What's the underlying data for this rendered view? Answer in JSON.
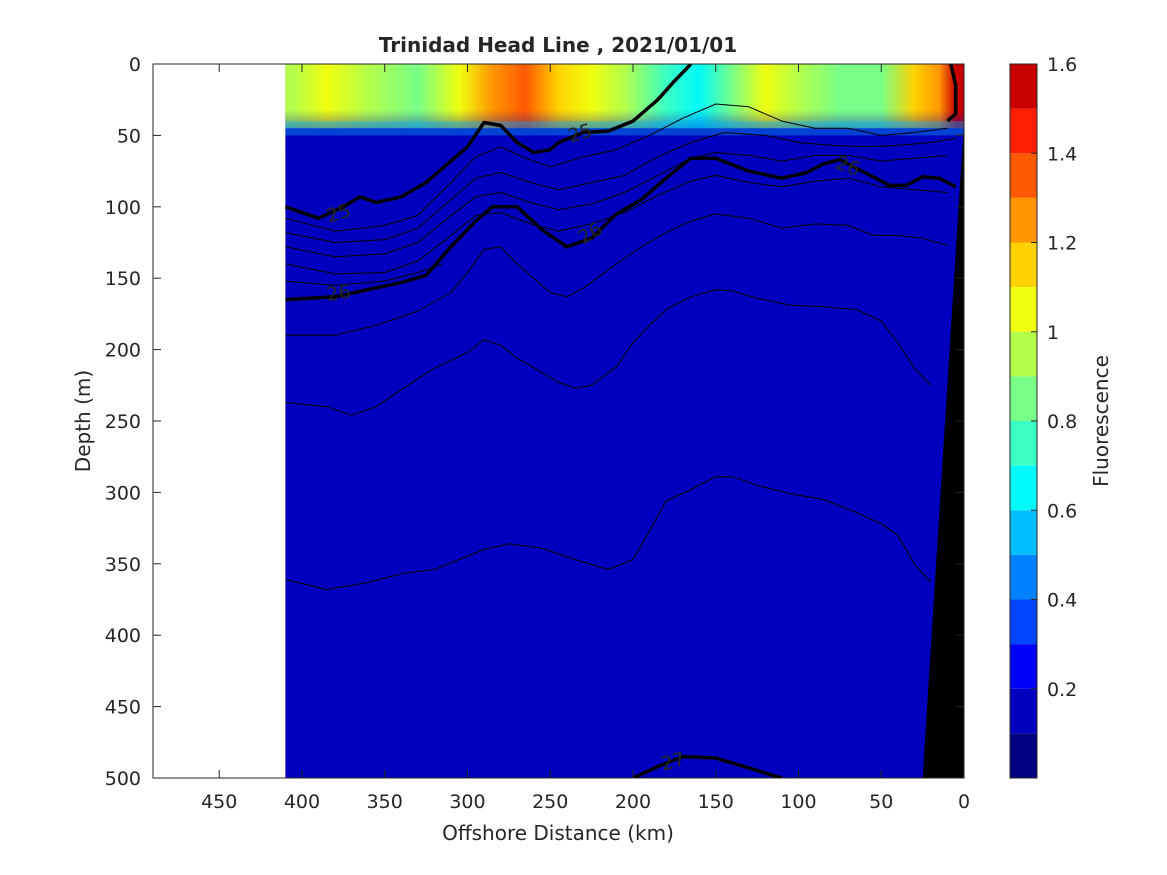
{
  "chart_data": {
    "type": "heatmap",
    "title": "Trinidad Head Line , 2021/01/01",
    "xlabel": "Offshore Distance (km)",
    "ylabel": "Depth (m)",
    "colorbar_label": "Fluorescence",
    "xlim": [
      490,
      0
    ],
    "ylim": [
      500,
      0
    ],
    "x_ticks": [
      450,
      400,
      350,
      300,
      250,
      200,
      150,
      100,
      50,
      0
    ],
    "x_tick_labels": [
      "450",
      "400",
      "350",
      "300",
      "250",
      "200",
      "150",
      "100",
      "50",
      "0"
    ],
    "y_ticks": [
      0,
      50,
      100,
      150,
      200,
      250,
      300,
      350,
      400,
      450,
      500
    ],
    "y_tick_labels": [
      "0",
      "50",
      "100",
      "150",
      "200",
      "250",
      "300",
      "350",
      "400",
      "450",
      "500"
    ],
    "data_x_range": [
      410,
      0
    ],
    "colorbar": {
      "range": [
        0,
        1.6
      ],
      "levels": [
        0,
        0.1,
        0.2,
        0.3,
        0.4,
        0.5,
        0.6,
        0.7,
        0.8,
        0.9,
        1.0,
        1.1,
        1.2,
        1.3,
        1.4,
        1.5,
        1.6
      ],
      "ticks": [
        0.2,
        0.4,
        0.6,
        0.8,
        1,
        1.2,
        1.4,
        1.6
      ],
      "tick_labels": [
        "0.2",
        "0.4",
        "0.6",
        "0.8",
        "1",
        "1.2",
        "1.4",
        "1.6"
      ],
      "colors": [
        "#000083",
        "#0000be",
        "#0000fa",
        "#0046ff",
        "#0082ff",
        "#00beff",
        "#00fafa",
        "#3cffc3",
        "#78ff87",
        "#b4ff4b",
        "#f0ff0f",
        "#ffd200",
        "#ff9600",
        "#ff5a00",
        "#ff1e00",
        "#c80000"
      ]
    },
    "surface_fluorescence_profile": [
      {
        "x": 405,
        "value": 0.95
      },
      {
        "x": 385,
        "value": 1.0
      },
      {
        "x": 360,
        "value": 0.9
      },
      {
        "x": 330,
        "value": 0.85
      },
      {
        "x": 305,
        "value": 1.05
      },
      {
        "x": 285,
        "value": 1.25
      },
      {
        "x": 265,
        "value": 1.3
      },
      {
        "x": 245,
        "value": 1.2
      },
      {
        "x": 225,
        "value": 1.0
      },
      {
        "x": 205,
        "value": 0.9
      },
      {
        "x": 180,
        "value": 0.75
      },
      {
        "x": 160,
        "value": 0.7
      },
      {
        "x": 140,
        "value": 0.8
      },
      {
        "x": 120,
        "value": 1.05
      },
      {
        "x": 100,
        "value": 0.95
      },
      {
        "x": 75,
        "value": 0.8
      },
      {
        "x": 50,
        "value": 0.85
      },
      {
        "x": 30,
        "value": 1.1
      },
      {
        "x": 15,
        "value": 1.25
      },
      {
        "x": 5,
        "value": 1.5
      }
    ],
    "density_contours": [
      {
        "label": "25",
        "bold": true,
        "points": [
          [
            410,
            100
          ],
          [
            390,
            108
          ],
          [
            375,
            100
          ],
          [
            365,
            93
          ],
          [
            355,
            97
          ],
          [
            340,
            93
          ],
          [
            325,
            83
          ],
          [
            310,
            68
          ],
          [
            300,
            58
          ],
          [
            290,
            41
          ],
          [
            280,
            43
          ],
          [
            270,
            55
          ],
          [
            260,
            62
          ],
          [
            250,
            60
          ],
          [
            245,
            55
          ],
          [
            230,
            48
          ],
          [
            215,
            47
          ],
          [
            200,
            40
          ],
          [
            185,
            25
          ],
          [
            175,
            12
          ],
          [
            165,
            0
          ]
        ]
      },
      {
        "label": "26",
        "bold": true,
        "points": [
          [
            410,
            165
          ],
          [
            380,
            163
          ],
          [
            360,
            158
          ],
          [
            340,
            153
          ],
          [
            325,
            148
          ],
          [
            310,
            128
          ],
          [
            295,
            110
          ],
          [
            285,
            100
          ],
          [
            270,
            100
          ],
          [
            255,
            116
          ],
          [
            240,
            128
          ],
          [
            225,
            122
          ],
          [
            210,
            105
          ],
          [
            195,
            95
          ],
          [
            180,
            80
          ],
          [
            165,
            66
          ],
          [
            150,
            66
          ],
          [
            130,
            75
          ],
          [
            110,
            80
          ],
          [
            95,
            76
          ],
          [
            85,
            70
          ],
          [
            75,
            67
          ],
          [
            60,
            76
          ],
          [
            45,
            85
          ],
          [
            35,
            85
          ],
          [
            25,
            79
          ],
          [
            15,
            80
          ],
          [
            5,
            86
          ]
        ]
      },
      {
        "label": "27",
        "bold": true,
        "points": [
          [
            200,
            500
          ],
          [
            185,
            492
          ],
          [
            170,
            485
          ],
          [
            150,
            486
          ],
          [
            130,
            493
          ],
          [
            110,
            500
          ]
        ]
      },
      {
        "label": "",
        "bold": false,
        "points": [
          [
            410,
            108
          ],
          [
            380,
            117
          ],
          [
            350,
            113
          ],
          [
            330,
            106
          ],
          [
            310,
            83
          ],
          [
            295,
            65
          ],
          [
            280,
            58
          ],
          [
            265,
            66
          ],
          [
            250,
            72
          ],
          [
            230,
            65
          ],
          [
            210,
            60
          ],
          [
            190,
            50
          ],
          [
            170,
            38
          ],
          [
            150,
            28
          ],
          [
            130,
            30
          ],
          [
            110,
            40
          ],
          [
            90,
            45
          ],
          [
            70,
            45
          ],
          [
            50,
            50
          ],
          [
            30,
            48
          ],
          [
            10,
            45
          ]
        ]
      },
      {
        "label": "",
        "bold": false,
        "points": [
          [
            410,
            118
          ],
          [
            380,
            125
          ],
          [
            350,
            123
          ],
          [
            330,
            115
          ],
          [
            310,
            95
          ],
          [
            295,
            80
          ],
          [
            280,
            76
          ],
          [
            262,
            83
          ],
          [
            245,
            88
          ],
          [
            225,
            83
          ],
          [
            205,
            78
          ],
          [
            185,
            65
          ],
          [
            165,
            55
          ],
          [
            145,
            48
          ],
          [
            120,
            50
          ],
          [
            100,
            55
          ],
          [
            80,
            57
          ],
          [
            60,
            58
          ],
          [
            40,
            57
          ],
          [
            20,
            55
          ],
          [
            5,
            52
          ]
        ]
      },
      {
        "label": "",
        "bold": false,
        "points": [
          [
            410,
            128
          ],
          [
            380,
            135
          ],
          [
            350,
            133
          ],
          [
            330,
            125
          ],
          [
            312,
            108
          ],
          [
            295,
            93
          ],
          [
            280,
            90
          ],
          [
            262,
            97
          ],
          [
            245,
            102
          ],
          [
            225,
            98
          ],
          [
            205,
            90
          ],
          [
            185,
            78
          ],
          [
            165,
            66
          ],
          [
            150,
            62
          ],
          [
            130,
            64
          ],
          [
            110,
            68
          ],
          [
            90,
            64
          ],
          [
            70,
            64
          ],
          [
            50,
            68
          ],
          [
            30,
            66
          ],
          [
            10,
            64
          ]
        ]
      },
      {
        "label": "",
        "bold": false,
        "points": [
          [
            410,
            140
          ],
          [
            380,
            147
          ],
          [
            350,
            146
          ],
          [
            330,
            138
          ],
          [
            312,
            122
          ],
          [
            295,
            106
          ],
          [
            280,
            104
          ],
          [
            262,
            112
          ],
          [
            245,
            117
          ],
          [
            225,
            112
          ],
          [
            205,
            104
          ],
          [
            185,
            92
          ],
          [
            165,
            82
          ],
          [
            150,
            78
          ],
          [
            130,
            83
          ],
          [
            110,
            86
          ],
          [
            90,
            82
          ],
          [
            70,
            80
          ],
          [
            50,
            86
          ],
          [
            30,
            88
          ],
          [
            10,
            90
          ]
        ]
      },
      {
        "label": "",
        "bold": false,
        "points": [
          [
            410,
            152
          ],
          [
            380,
            155
          ],
          [
            350,
            152
          ],
          [
            330,
            146
          ],
          [
            315,
            140
          ]
        ]
      },
      {
        "label": "",
        "bold": false,
        "points": [
          [
            410,
            190
          ],
          [
            380,
            190
          ],
          [
            355,
            183
          ],
          [
            330,
            173
          ],
          [
            310,
            160
          ],
          [
            300,
            146
          ],
          [
            290,
            130
          ],
          [
            280,
            128
          ],
          [
            270,
            140
          ],
          [
            260,
            150
          ],
          [
            250,
            160
          ],
          [
            240,
            163
          ],
          [
            230,
            157
          ],
          [
            210,
            140
          ],
          [
            195,
            128
          ],
          [
            180,
            118
          ],
          [
            165,
            110
          ],
          [
            150,
            105
          ],
          [
            130,
            108
          ],
          [
            110,
            115
          ],
          [
            90,
            112
          ],
          [
            70,
            113
          ],
          [
            55,
            120
          ],
          [
            40,
            120
          ],
          [
            25,
            122
          ],
          [
            10,
            127
          ]
        ]
      },
      {
        "label": "",
        "bold": false,
        "points": [
          [
            410,
            237
          ],
          [
            385,
            240
          ],
          [
            370,
            246
          ],
          [
            355,
            240
          ],
          [
            340,
            228
          ],
          [
            320,
            213
          ],
          [
            300,
            202
          ],
          [
            290,
            193
          ],
          [
            280,
            197
          ],
          [
            270,
            206
          ],
          [
            255,
            216
          ],
          [
            245,
            223
          ],
          [
            235,
            227
          ],
          [
            225,
            225
          ],
          [
            210,
            212
          ],
          [
            200,
            195
          ],
          [
            190,
            183
          ],
          [
            180,
            172
          ],
          [
            165,
            163
          ],
          [
            150,
            158
          ],
          [
            140,
            159
          ],
          [
            125,
            164
          ],
          [
            105,
            169
          ],
          [
            85,
            170
          ],
          [
            65,
            172
          ],
          [
            50,
            180
          ],
          [
            40,
            195
          ],
          [
            30,
            213
          ],
          [
            20,
            225
          ]
        ]
      },
      {
        "label": "",
        "bold": false,
        "points": [
          [
            410,
            361
          ],
          [
            385,
            368
          ],
          [
            360,
            363
          ],
          [
            340,
            357
          ],
          [
            320,
            354
          ],
          [
            305,
            347
          ],
          [
            290,
            340
          ],
          [
            275,
            336
          ],
          [
            255,
            339
          ],
          [
            235,
            347
          ],
          [
            215,
            354
          ],
          [
            200,
            347
          ],
          [
            190,
            327
          ],
          [
            180,
            306
          ],
          [
            165,
            298
          ],
          [
            150,
            289
          ],
          [
            140,
            289
          ],
          [
            125,
            295
          ],
          [
            105,
            301
          ],
          [
            85,
            305
          ],
          [
            65,
            314
          ],
          [
            50,
            322
          ],
          [
            40,
            330
          ],
          [
            30,
            350
          ],
          [
            20,
            363
          ]
        ]
      }
    ],
    "contour_labels": [
      {
        "text": "25",
        "x": 378,
        "y": 104,
        "angle": -17
      },
      {
        "text": "25",
        "x": 232,
        "y": 48,
        "angle": -18
      },
      {
        "text": "26",
        "x": 378,
        "y": 160,
        "angle": -8
      },
      {
        "text": "26",
        "x": 226,
        "y": 118,
        "angle": -30
      },
      {
        "text": "26",
        "x": 70,
        "y": 71,
        "angle": 20
      },
      {
        "text": "27",
        "x": 176,
        "y": 488,
        "angle": -15
      }
    ],
    "bathymetry": [
      [
        25,
        500
      ],
      [
        0,
        40
      ],
      [
        0,
        500
      ]
    ],
    "nearshore_contour": [
      [
        8,
        0
      ],
      [
        5,
        15
      ],
      [
        5,
        35
      ],
      [
        10,
        40
      ]
    ]
  }
}
